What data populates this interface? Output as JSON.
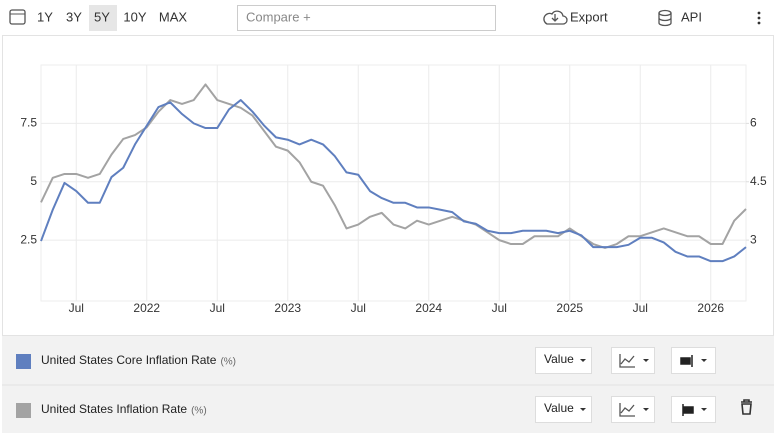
{
  "toolbar": {
    "ranges": [
      "1Y",
      "3Y",
      "5Y",
      "10Y",
      "MAX"
    ],
    "compare_placeholder": "Compare +",
    "export": "Export",
    "api": "API"
  },
  "chart_data": {
    "type": "line",
    "categories": [
      null,
      null,
      null,
      "Jul",
      null,
      null,
      null,
      null,
      null,
      "2022",
      null,
      null,
      null,
      null,
      null,
      "Jul",
      null,
      null,
      null,
      null,
      null,
      "2023",
      null,
      null,
      null,
      null,
      null,
      "Jul",
      null,
      null,
      null,
      null,
      null,
      "2024",
      null,
      null,
      null,
      null,
      null,
      "Jul",
      null,
      null,
      null,
      null,
      null,
      "2025",
      null,
      null,
      null,
      null,
      null,
      "Jul",
      null,
      null,
      null,
      null,
      null,
      "2026",
      null,
      null,
      null
    ],
    "series": [
      {
        "name": "United States Core Inflation Rate",
        "unit": "(%)",
        "color": "#5f7fbf",
        "axis": "y",
        "values": [
          2.46,
          3.8,
          4.95,
          4.6,
          4.1,
          4.1,
          5.2,
          5.6,
          6.6,
          7.4,
          8.2,
          8.4,
          7.9,
          7.5,
          7.3,
          7.3,
          8.1,
          8.5,
          8.0,
          7.4,
          6.9,
          6.8,
          6.6,
          6.8,
          6.6,
          6.1,
          5.4,
          5.3,
          4.6,
          4.3,
          4.1,
          4.1,
          3.9,
          3.9,
          3.8,
          3.7,
          3.3,
          3.2,
          2.9,
          2.8,
          2.8,
          2.9,
          2.9,
          2.9,
          2.8,
          2.9,
          2.7,
          2.2,
          2.2,
          2.2,
          2.3,
          2.6,
          2.6,
          2.4,
          2.0,
          1.8,
          1.8,
          1.6,
          1.6,
          1.8,
          2.2
        ]
      },
      {
        "name": "United States Inflation Rate",
        "unit": "(%)",
        "color": "#a3a3a3",
        "axis": "y2",
        "values": [
          3.97,
          4.6,
          4.7,
          4.7,
          4.6,
          4.7,
          5.2,
          5.6,
          5.7,
          5.9,
          6.3,
          6.6,
          6.5,
          6.6,
          7.0,
          6.6,
          6.5,
          6.4,
          6.2,
          5.8,
          5.4,
          5.3,
          5.0,
          4.5,
          4.4,
          3.9,
          3.3,
          3.4,
          3.6,
          3.7,
          3.4,
          3.3,
          3.5,
          3.4,
          3.5,
          3.6,
          3.5,
          3.4,
          3.2,
          3.0,
          2.9,
          2.9,
          3.1,
          3.1,
          3.1,
          3.3,
          3.1,
          2.9,
          2.8,
          2.9,
          3.1,
          3.1,
          3.2,
          3.3,
          3.2,
          3.1,
          3.1,
          2.9,
          2.9,
          3.5,
          3.8
        ]
      }
    ],
    "ylim": [
      0,
      10
    ],
    "yticks": [
      2.5,
      5,
      7.5
    ],
    "y2lim": [
      1.5,
      7.5
    ],
    "y2ticks": [
      3,
      4.5,
      6
    ],
    "grid": true
  },
  "legend_controls": {
    "value_button": "Value"
  }
}
